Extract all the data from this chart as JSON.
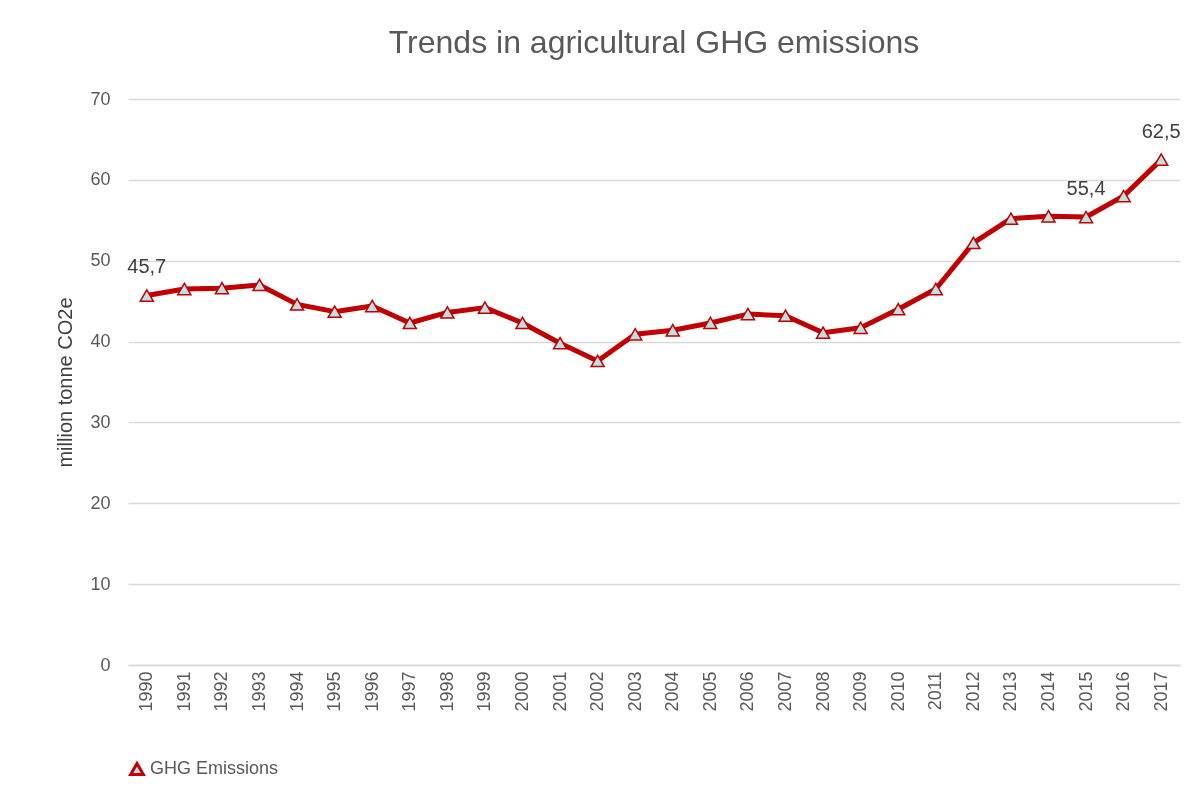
{
  "chart_data": {
    "type": "line",
    "title": "Trends in agricultural GHG emissions",
    "ylabel": "million tonne CO2e",
    "categories": [
      "1990",
      "1991",
      "1992",
      "1993",
      "1994",
      "1995",
      "1996",
      "1997",
      "1998",
      "1999",
      "2000",
      "2001",
      "2002",
      "2003",
      "2004",
      "2005",
      "2006",
      "2007",
      "2008",
      "2009",
      "2010",
      "2011",
      "2012",
      "2013",
      "2014",
      "2015",
      "2016",
      "2017"
    ],
    "series": [
      {
        "name": "GHG Emissions",
        "color": "#c00000",
        "values": [
          45.7,
          46.5,
          46.6,
          47.0,
          44.6,
          43.7,
          44.4,
          42.3,
          43.6,
          44.2,
          42.3,
          39.8,
          37.6,
          40.9,
          41.4,
          42.3,
          43.4,
          43.2,
          41.1,
          41.7,
          44.0,
          46.5,
          52.2,
          55.2,
          55.5,
          55.4,
          58.0,
          62.5
        ],
        "value_labels": [
          "45,7",
          null,
          null,
          null,
          null,
          null,
          null,
          null,
          null,
          null,
          null,
          null,
          null,
          null,
          null,
          null,
          null,
          null,
          null,
          null,
          null,
          null,
          null,
          null,
          null,
          "55,4",
          null,
          "62,5"
        ]
      }
    ],
    "ylim": [
      0,
      70
    ],
    "yticks": [
      0,
      10,
      20,
      30,
      40,
      50,
      60,
      70
    ],
    "grid": "y",
    "legend": "bottom",
    "marker": "triangle",
    "line_style": "solid"
  }
}
